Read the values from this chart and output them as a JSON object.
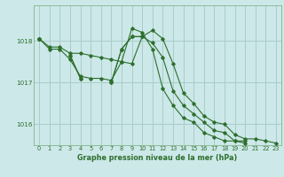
{
  "bg_color": "#cce8e8",
  "grid_color": "#aacccc",
  "line_color": "#2d6e2d",
  "title": "Graphe pression niveau de la mer (hPa)",
  "xlim": [
    -0.5,
    23.5
  ],
  "ylim": [
    1015.5,
    1018.85
  ],
  "yticks": [
    1016,
    1017,
    1018
  ],
  "xticks": [
    0,
    1,
    2,
    3,
    4,
    5,
    6,
    7,
    8,
    9,
    10,
    11,
    12,
    13,
    14,
    15,
    16,
    17,
    18,
    19,
    20,
    21,
    22,
    23
  ],
  "series": [
    [
      1018.05,
      1017.85,
      1017.85,
      1017.7,
      1017.7,
      1017.65,
      1017.6,
      1017.55,
      1017.5,
      1017.45,
      1018.1,
      1018.25,
      1018.05,
      1017.45,
      1016.75,
      1016.5,
      1016.2,
      1016.05,
      1016.0,
      1015.75,
      1015.65,
      1015.65,
      1015.6,
      1015.55
    ],
    [
      1018.05,
      1017.8,
      1017.8,
      1017.55,
      1017.15,
      1017.1,
      1017.1,
      1017.05,
      1017.5,
      1018.3,
      1018.2,
      1017.8,
      1016.85,
      1016.45,
      1016.15,
      1016.05,
      1015.8,
      1015.7,
      1015.6,
      1015.6,
      1015.6,
      null,
      null,
      null
    ],
    [
      1018.05,
      null,
      null,
      1017.65,
      1017.1,
      null,
      null,
      1017.0,
      1017.8,
      1018.1,
      1018.1,
      null,
      null,
      null,
      null,
      null,
      null,
      null,
      null,
      null,
      null,
      null,
      null,
      null
    ],
    [
      1018.05,
      null,
      null,
      1017.65,
      1017.1,
      null,
      null,
      1017.0,
      1017.8,
      1018.1,
      1018.1,
      1017.95,
      1017.6,
      1016.8,
      1016.45,
      1016.25,
      1016.05,
      1015.85,
      1015.8,
      1015.6,
      1015.55,
      null,
      null,
      null
    ]
  ]
}
